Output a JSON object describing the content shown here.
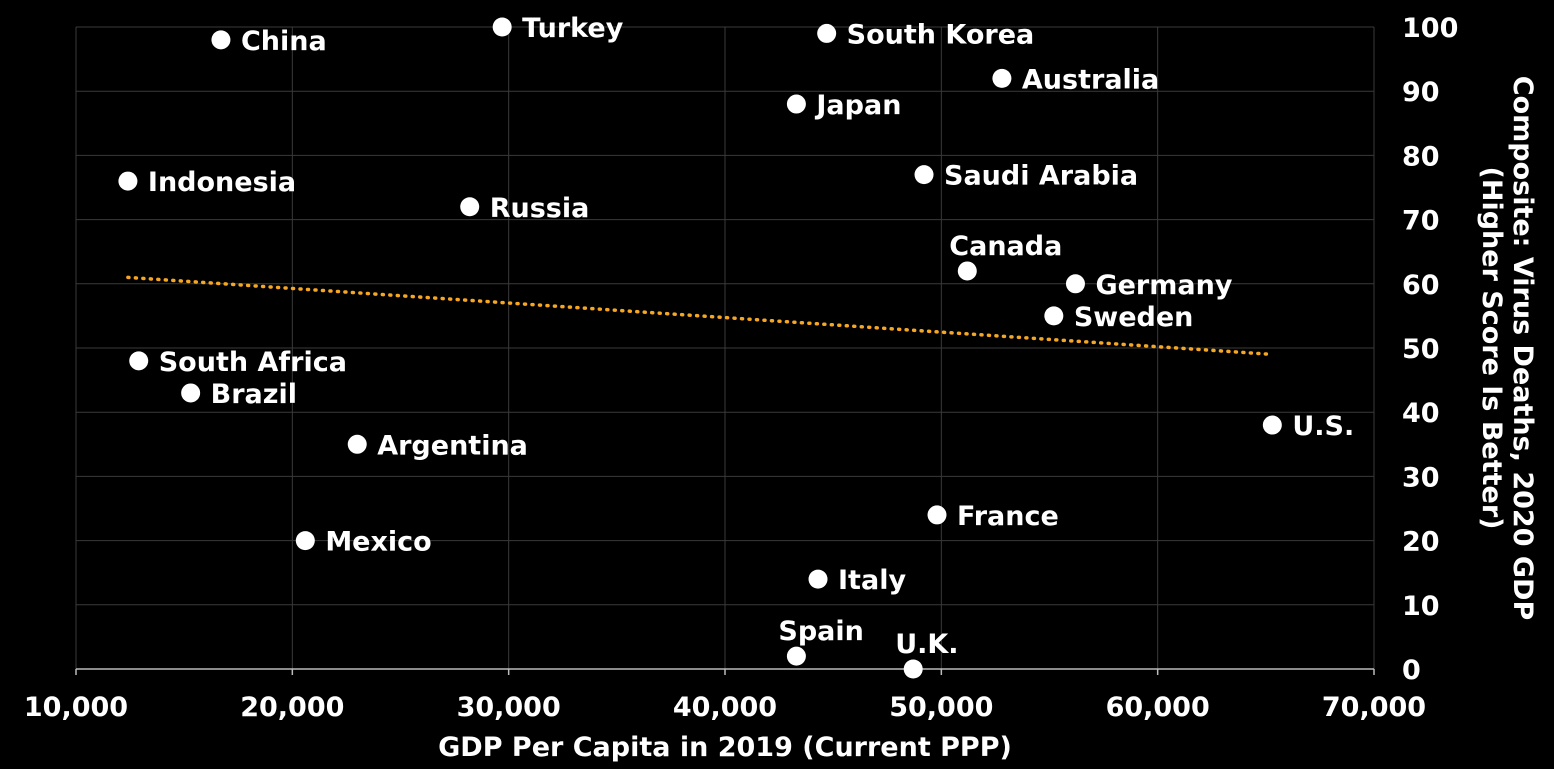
{
  "chart_data": {
    "type": "scatter",
    "title": "",
    "xlabel": "GDP Per Capita in 2019 (Current PPP)",
    "ylabel_line1": "Composite: Virus Deaths, 2020 GDP",
    "ylabel_line2": "(Higher Score Is Better)",
    "xlim": [
      10000,
      70000
    ],
    "ylim": [
      0,
      100
    ],
    "x_ticks": [
      10000,
      20000,
      30000,
      40000,
      50000,
      60000,
      70000
    ],
    "x_tick_labels": [
      "10,000",
      "20,000",
      "30,000",
      "40,000",
      "50,000",
      "60,000",
      "70,000"
    ],
    "y_ticks": [
      0,
      10,
      20,
      30,
      40,
      50,
      60,
      70,
      80,
      90,
      100
    ],
    "y_tick_labels": [
      "0",
      "10",
      "20",
      "30",
      "40",
      "50",
      "60",
      "70",
      "80",
      "90",
      "100"
    ],
    "y_axis_side": "right",
    "grid": true,
    "points": [
      {
        "label": "China",
        "x": 16700,
        "y": 98,
        "label_pos": "right"
      },
      {
        "label": "Turkey",
        "x": 29700,
        "y": 100,
        "label_pos": "right"
      },
      {
        "label": "South Korea",
        "x": 44700,
        "y": 99,
        "label_pos": "right"
      },
      {
        "label": "Australia",
        "x": 52800,
        "y": 92,
        "label_pos": "right"
      },
      {
        "label": "Japan",
        "x": 43300,
        "y": 88,
        "label_pos": "right"
      },
      {
        "label": "Indonesia",
        "x": 12400,
        "y": 76,
        "label_pos": "right"
      },
      {
        "label": "Saudi Arabia",
        "x": 49200,
        "y": 77,
        "label_pos": "right"
      },
      {
        "label": "Russia",
        "x": 28200,
        "y": 72,
        "label_pos": "right"
      },
      {
        "label": "Canada",
        "x": 51200,
        "y": 62,
        "label_pos": "above"
      },
      {
        "label": "Germany",
        "x": 56200,
        "y": 60,
        "label_pos": "right"
      },
      {
        "label": "Sweden",
        "x": 55200,
        "y": 55,
        "label_pos": "right"
      },
      {
        "label": "South Africa",
        "x": 12900,
        "y": 48,
        "label_pos": "right"
      },
      {
        "label": "Brazil",
        "x": 15300,
        "y": 43,
        "label_pos": "right"
      },
      {
        "label": "Argentina",
        "x": 23000,
        "y": 35,
        "label_pos": "right"
      },
      {
        "label": "U.S.",
        "x": 65300,
        "y": 38,
        "label_pos": "right"
      },
      {
        "label": "France",
        "x": 49800,
        "y": 24,
        "label_pos": "right"
      },
      {
        "label": "Mexico",
        "x": 20600,
        "y": 20,
        "label_pos": "right"
      },
      {
        "label": "Italy",
        "x": 44300,
        "y": 14,
        "label_pos": "right"
      },
      {
        "label": "Spain",
        "x": 43300,
        "y": 2,
        "label_pos": "above"
      },
      {
        "label": "U.K.",
        "x": 48700,
        "y": 0,
        "label_pos": "above"
      }
    ],
    "trendline": {
      "style": "dotted",
      "color": "#f5a623",
      "x": [
        12400,
        65300
      ],
      "y": [
        61,
        49
      ]
    },
    "colors": {
      "background": "#000000",
      "point": "#ffffff",
      "grid": "#3a3a3a",
      "text": "#ffffff"
    }
  }
}
